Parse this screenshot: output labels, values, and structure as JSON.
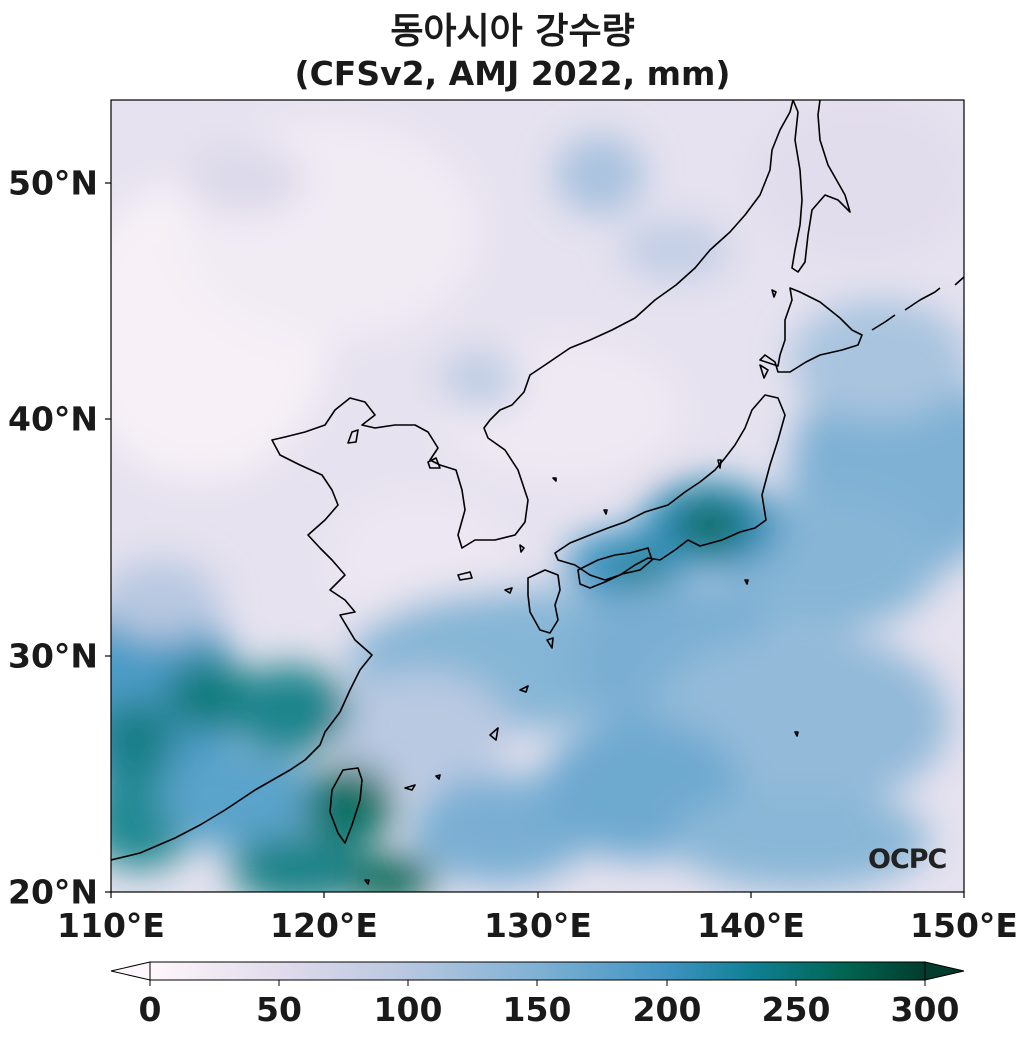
{
  "title": {
    "line1": "동아시아 강수량",
    "line2": "(CFSv2, AMJ 2022, mm)"
  },
  "axes": {
    "lat_labels": [
      "50°N",
      "40°N",
      "30°N",
      "20°N"
    ],
    "lon_labels": [
      "110°E",
      "120°E",
      "130°E",
      "140°E",
      "150°E"
    ],
    "lat_range": [
      20,
      53.5
    ],
    "lon_range": [
      110,
      150
    ]
  },
  "colorbar": {
    "ticks": [
      "0",
      "50",
      "100",
      "150",
      "200",
      "250",
      "300"
    ],
    "range": [
      0,
      300
    ],
    "colormap": "PuBuGn",
    "colors": [
      "#fff7fb",
      "#e1dbec",
      "#b7c7e0",
      "#7fb1d4",
      "#3f93c2",
      "#0e7f93",
      "#016450",
      "#013c2e"
    ],
    "extend": "both"
  },
  "logo": "OCPC"
}
